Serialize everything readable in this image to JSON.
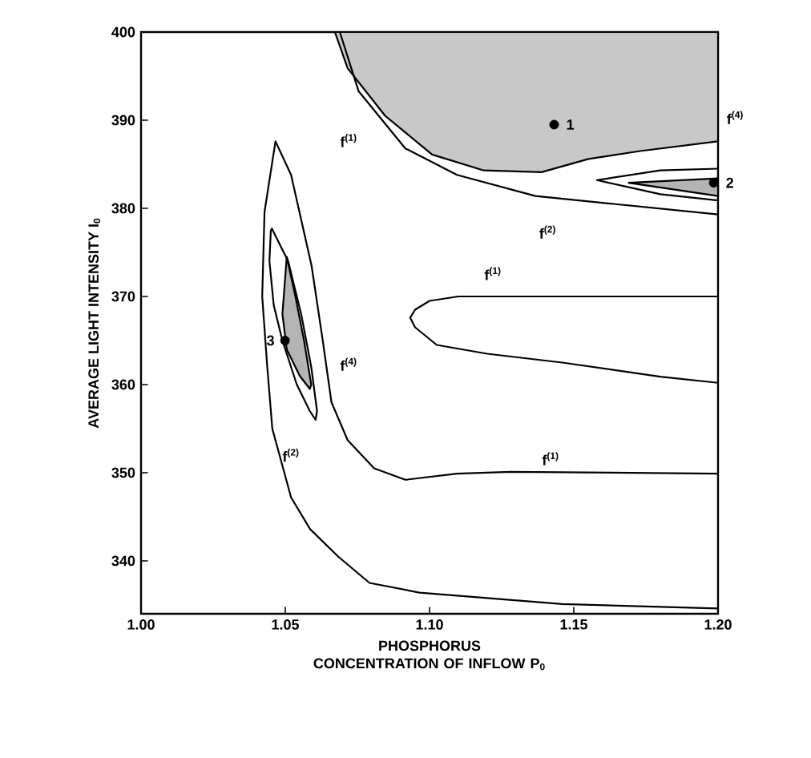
{
  "chart_data": {
    "type": "line",
    "xlabel": "PHOSPHORUS CONCENTRATION OF INFLOW P$_{0}$",
    "ylabel": "AVERAGE LIGHT INTENSITY I$_{0}$",
    "xlim": [
      1.0,
      1.2
    ],
    "ylim": [
      334,
      400
    ],
    "xticks": [
      {
        "value": 1.0,
        "label": "1.00"
      },
      {
        "value": 1.05,
        "label": "1.05"
      },
      {
        "value": 1.1,
        "label": "1.10"
      },
      {
        "value": 1.15,
        "label": "1.15"
      },
      {
        "value": 1.2,
        "label": "1.20"
      }
    ],
    "yticks": [
      340,
      350,
      360,
      370,
      380,
      390,
      400
    ],
    "series": [
      {
        "type": "area",
        "color": "#c8c8c8",
        "x": [
          1.0672,
          1.0716,
          1.0846,
          1.1009,
          1.1188,
          1.1388,
          1.1551,
          1.173,
          1.2,
          1.2
        ],
        "values": [
          400,
          395.9,
          390.5,
          386.1,
          384.3,
          384.1,
          385.6,
          386.5,
          387.6,
          400
        ]
      },
      {
        "type": "area",
        "color": "#b4b4b4",
        "x": [
          1.2,
          1.169,
          1.2
        ],
        "values": [
          383.4,
          382.9,
          381.4
        ]
      },
      {
        "type": "area",
        "color": "#b4b4b4",
        "x": [
          1.0505,
          1.0535,
          1.0565,
          1.059,
          1.0585,
          1.055,
          1.0505,
          1.049
        ],
        "values": [
          374.5,
          370,
          365,
          360,
          359.5,
          361,
          364,
          368
        ]
      },
      {
        "color": "#000000",
        "x": [
          1.0689,
          1.0754,
          1.0916,
          1.1095,
          1.1367,
          1.1638,
          1.2
        ],
        "values": [
          400,
          393.3,
          386.8,
          383.8,
          381.4,
          380.5,
          379.3
        ]
      },
      {
        "color": "#000000",
        "x": [
          1.2,
          1.18,
          1.158,
          1.18,
          1.2
        ],
        "values": [
          384.5,
          384.3,
          383.2,
          381.6,
          380.9
        ]
      },
      {
        "color": "#000000",
        "x": [
          1.2,
          1.11,
          1.1,
          1.095,
          1.0933,
          1.095,
          1.1025,
          1.12,
          1.146,
          1.18,
          1.2
        ],
        "values": [
          370,
          370,
          369.5,
          368.5,
          367.6,
          366.5,
          364.5,
          363.5,
          362.5,
          360.9,
          360.2
        ]
      },
      {
        "color": "#000000",
        "x": [
          1.2,
          1.128,
          1.1095,
          1.0916,
          1.0808,
          1.0716,
          1.066,
          1.0629,
          1.0591,
          1.052,
          1.0466,
          1.0428,
          1.042,
          1.0437,
          1.0455,
          1.052,
          1.0586,
          1.0683,
          1.0792,
          1.0965,
          1.146,
          1.2
        ],
        "values": [
          349.9,
          350.1,
          349.9,
          349.2,
          350.5,
          353.7,
          358,
          365.2,
          373.5,
          383.8,
          387.6,
          379.6,
          370,
          362.2,
          355,
          347.2,
          343.6,
          340.5,
          337.5,
          336.4,
          335.1,
          334.6
        ]
      },
      {
        "color": "#000000",
        "x": [
          1.0452,
          1.051,
          1.0555,
          1.059,
          1.061,
          1.0605,
          1.0585,
          1.054,
          1.049,
          1.046,
          1.0445,
          1.045
        ],
        "values": [
          377.8,
          374,
          368,
          362,
          357,
          356,
          357,
          360,
          365,
          369,
          374,
          377.6
        ]
      },
      {
        "type": "scatter",
        "color": "#000000",
        "marker": "circle",
        "x": [
          1.1432,
          1.1985,
          1.0499
        ],
        "values": [
          389.5,
          382.9,
          365.0
        ]
      }
    ],
    "annotations": [
      "f$^{(1)}$",
      "f$^{(4)}$",
      "f$^{(2)}$",
      "f$^{(1)}$",
      "f$^{(4)}$",
      "f$^{(2)}$",
      "f$^{(1)}$",
      {
        "text": "1",
        "x": 1.1432,
        "y": 389.5
      },
      {
        "text": "2",
        "x": 1.1985,
        "y": 382.9
      },
      {
        "text": "3",
        "x": 1.0499,
        "y": 365.0
      }
    ]
  }
}
